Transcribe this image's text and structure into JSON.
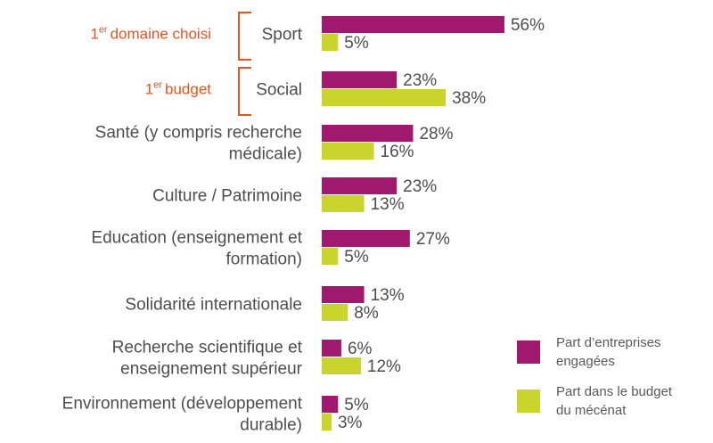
{
  "chart_data": {
    "type": "bar",
    "orientation": "horizontal",
    "categories": [
      [
        "Sport"
      ],
      [
        "Social"
      ],
      [
        "Santé (y compris recherche",
        "médicale)"
      ],
      [
        "Culture / Patrimoine"
      ],
      [
        "Education (enseignement et",
        "formation)"
      ],
      [
        "Solidarité internationale"
      ],
      [
        "Recherche scientifique et",
        "enseignement supérieur"
      ],
      [
        "Environnement (développement",
        "durable)"
      ]
    ],
    "series": [
      {
        "name": "Part d’entreprises engagées",
        "legend_lines": [
          "Part d’entreprises",
          "engagées"
        ],
        "color": "#a0196e",
        "values": [
          56,
          23,
          28,
          23,
          27,
          13,
          6,
          5
        ],
        "labels": [
          "56%",
          "23%",
          "28%",
          "23%",
          "27%",
          "13%",
          "6%",
          "5%"
        ]
      },
      {
        "name": "Part dans le budget du mécénat",
        "legend_lines": [
          "Part dans le budget",
          "du mécénat"
        ],
        "color": "#c9d42c",
        "values": [
          5,
          38,
          16,
          13,
          5,
          8,
          12,
          3
        ],
        "labels": [
          "5%",
          "38%",
          "16%",
          "13%",
          "5%",
          "8%",
          "12%",
          "3%"
        ]
      }
    ],
    "annotations": [
      {
        "sup": "er",
        "number": "1",
        "text": "domaine choisi",
        "category": "Sport"
      },
      {
        "sup": "er",
        "number": "1",
        "text": "budget",
        "category": "Social"
      }
    ],
    "annotation_color": "#e8541e",
    "grid": false,
    "legend_position": "bottom-right"
  }
}
